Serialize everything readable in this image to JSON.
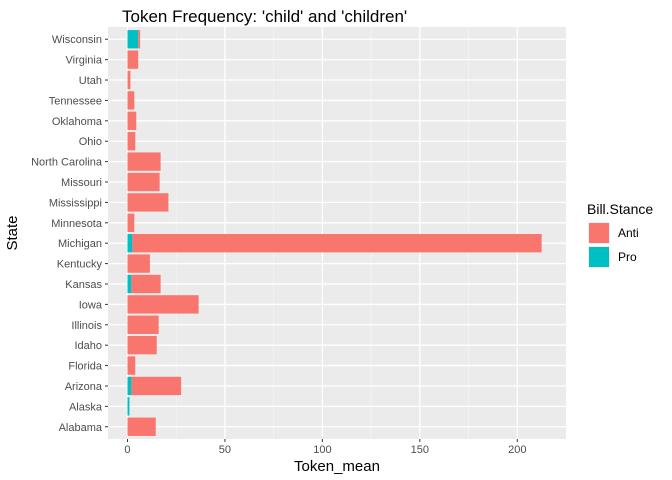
{
  "chart_data": {
    "type": "bar",
    "orientation": "horizontal",
    "stacked": true,
    "title": "Token Frequency: 'child' and 'children'",
    "xlabel": "Token_mean",
    "ylabel": "State",
    "xlim": [
      -10,
      225
    ],
    "xticks": [
      0,
      50,
      100,
      150,
      200
    ],
    "grid": true,
    "legend": {
      "title": "Bill.Stance",
      "position": "right",
      "entries": [
        "Anti",
        "Pro"
      ]
    },
    "categories": [
      "Alabama",
      "Alaska",
      "Arizona",
      "Florida",
      "Idaho",
      "Illinois",
      "Iowa",
      "Kansas",
      "Kentucky",
      "Michigan",
      "Minnesota",
      "Mississippi",
      "Missouri",
      "North Carolina",
      "Ohio",
      "Oklahoma",
      "Tennessee",
      "Utah",
      "Virginia",
      "Wisconsin"
    ],
    "series": [
      {
        "name": "Pro",
        "color": "#00BFC4",
        "values": [
          0,
          1,
          2,
          0,
          0,
          0,
          0,
          2,
          0,
          2.5,
          0,
          0,
          0,
          0,
          0,
          0,
          0,
          0,
          0,
          5.5
        ]
      },
      {
        "name": "Anti",
        "color": "#F8766D",
        "values": [
          14.5,
          0,
          25.5,
          4,
          15,
          16,
          36.5,
          15,
          11.5,
          210,
          3.5,
          21,
          16.5,
          17,
          4,
          4.5,
          3.5,
          1.5,
          5.5,
          1
        ]
      }
    ]
  }
}
